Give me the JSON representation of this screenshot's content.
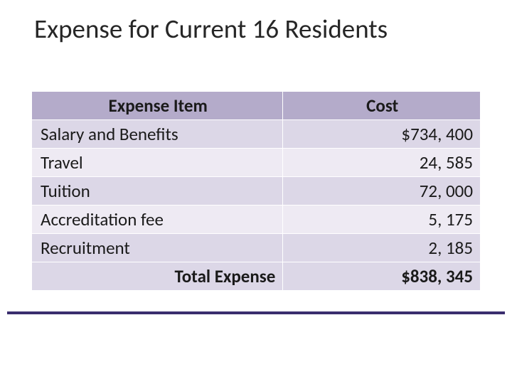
{
  "title": "Expense for Current 16 Residents",
  "table": {
    "columns": [
      "Expense Item",
      "Cost"
    ],
    "rows": [
      {
        "item": "Salary and Benefits",
        "cost": "$734, 400"
      },
      {
        "item": "Travel",
        "cost": "24, 585"
      },
      {
        "item": "Tuition",
        "cost": "72, 000"
      },
      {
        "item": "Accreditation fee",
        "cost": "5, 175"
      },
      {
        "item": "Recruitment",
        "cost": "2, 185"
      }
    ],
    "total_label": "Total Expense",
    "total_value": "$838, 345",
    "header_bg": "#b4abca",
    "row_bg_odd": "#dcd7e7",
    "row_bg_even": "#eeeaf3",
    "total_bg": "#dcd7e7",
    "border_color": "#ffffff",
    "text_color": "#1a1a1a",
    "header_fontsize": 25,
    "cell_fontsize": 25
  },
  "title_color": "#262626",
  "title_fontsize": 37,
  "rule_color": "#3a2e6e",
  "background_color": "#ffffff"
}
